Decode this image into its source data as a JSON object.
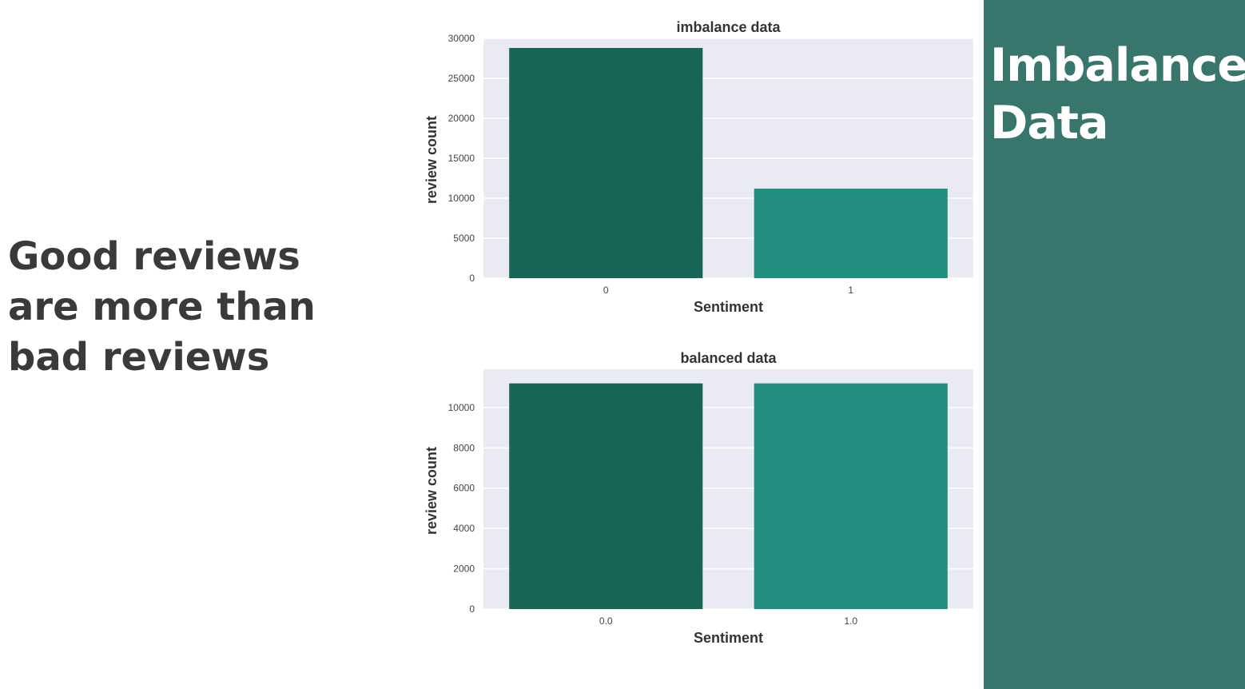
{
  "slide": {
    "heading": "Good reviews are more than bad reviews"
  },
  "side_panel": {
    "title": "Imbalance Data",
    "background": "#37756d"
  },
  "chart_data": [
    {
      "type": "bar",
      "title": "imbalance data",
      "xlabel": "Sentiment",
      "ylabel": "review count",
      "categories": [
        "0",
        "1"
      ],
      "values": [
        28800,
        11200
      ],
      "ylim": [
        0,
        30000
      ],
      "yticks": [
        0,
        5000,
        10000,
        15000,
        20000,
        25000,
        30000
      ],
      "colors": [
        "#186756",
        "#228e80"
      ],
      "background": "#eaeaf2",
      "grid": true
    },
    {
      "type": "bar",
      "title": "balanced data",
      "xlabel": "Sentiment",
      "ylabel": "review count",
      "categories": [
        "0.0",
        "1.0"
      ],
      "values": [
        11200,
        11200
      ],
      "ylim": [
        0,
        11900
      ],
      "yticks": [
        0,
        2000,
        4000,
        6000,
        8000,
        10000
      ],
      "colors": [
        "#186756",
        "#228e80"
      ],
      "background": "#eaeaf2",
      "grid": true
    }
  ]
}
